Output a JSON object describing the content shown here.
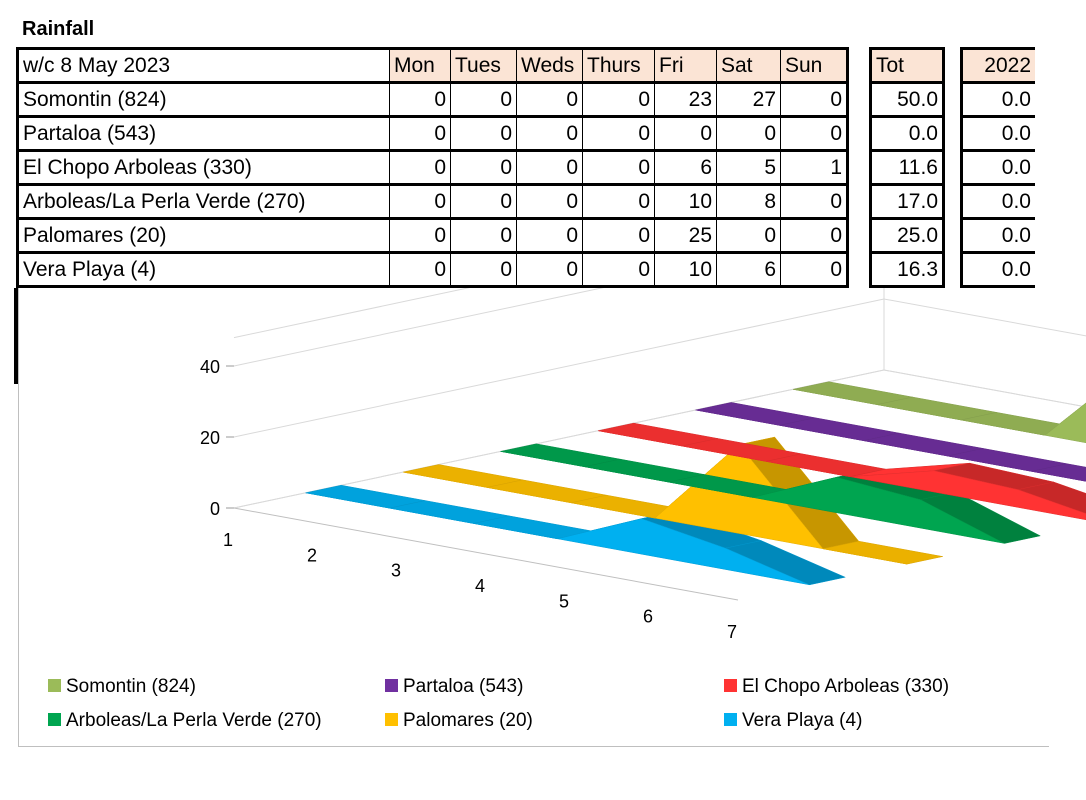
{
  "title": "Rainfall",
  "table": {
    "week_label": "w/c 8 May 2023",
    "days": [
      "Mon",
      "Tues",
      "Weds",
      "Thurs",
      "Fri",
      "Sat",
      "Sun"
    ],
    "total_label": "Tot",
    "prev_year_label": "2022",
    "rows": [
      {
        "site": "Somontin (824)",
        "values": [
          "0",
          "0",
          "0",
          "0",
          "23",
          "27",
          "0"
        ],
        "total": "50.0",
        "prev": "0.0"
      },
      {
        "site": "Partaloa (543)",
        "values": [
          "0",
          "0",
          "0",
          "0",
          "0",
          "0",
          "0"
        ],
        "total": "0.0",
        "prev": "0.0"
      },
      {
        "site": "El Chopo Arboleas (330)",
        "values": [
          "0",
          "0",
          "0",
          "0",
          "6",
          "5",
          "1"
        ],
        "total": "11.6",
        "prev": "0.0"
      },
      {
        "site": "Arboleas/La Perla Verde (270)",
        "values": [
          "0",
          "0",
          "0",
          "0",
          "10",
          "8",
          "0"
        ],
        "total": "17.0",
        "prev": "0.0"
      },
      {
        "site": "Palomares (20)",
        "values": [
          "0",
          "0",
          "0",
          "0",
          "25",
          "0",
          "0"
        ],
        "total": "25.0",
        "prev": "0.0"
      },
      {
        "site": "Vera Playa (4)",
        "values": [
          "0",
          "0",
          "0",
          "0",
          "10",
          "6",
          "0"
        ],
        "total": "16.3",
        "prev": "0.0"
      }
    ]
  },
  "chart_data": {
    "type": "area",
    "subtype": "3d-area",
    "x": [
      "1",
      "2",
      "3",
      "4",
      "5",
      "6",
      "7"
    ],
    "y_ticks": [
      "0",
      "20",
      "40"
    ],
    "ylim": [
      0,
      40
    ],
    "legend_position": "bottom",
    "series": [
      {
        "name": "Somontin (824)",
        "values": [
          0,
          0,
          0,
          0,
          23,
          27,
          0
        ],
        "color": "#9bbb59"
      },
      {
        "name": "Partaloa (543)",
        "values": [
          0,
          0,
          0,
          0,
          0,
          0,
          0
        ],
        "color": "#7030a0"
      },
      {
        "name": "El Chopo Arboleas (330)",
        "values": [
          0,
          0,
          0,
          0,
          6,
          5,
          1
        ],
        "color": "#ff3333"
      },
      {
        "name": "Arboleas/La Perla Verde (270)",
        "values": [
          0,
          0,
          0,
          0,
          10,
          8,
          0
        ],
        "color": "#00a550"
      },
      {
        "name": "Palomares (20)",
        "values": [
          0,
          0,
          0,
          0,
          25,
          0,
          0
        ],
        "color": "#ffc000"
      },
      {
        "name": "Vera Playa (4)",
        "values": [
          0,
          0,
          0,
          0,
          10,
          6,
          0
        ],
        "color": "#00b0f0"
      }
    ]
  }
}
